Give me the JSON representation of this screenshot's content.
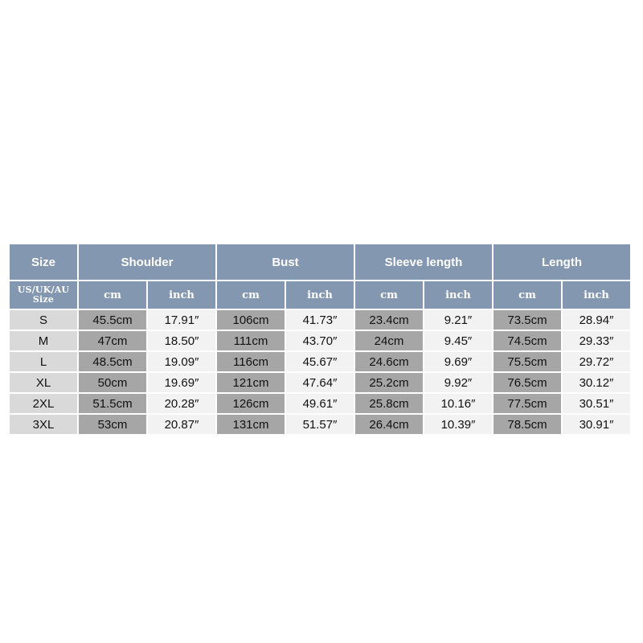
{
  "header": {
    "groups": [
      "Size",
      "Shoulder",
      "Bust",
      "Sleeve length",
      "Length"
    ],
    "size_caption_line1": "US/UK/AU",
    "size_caption_line2": "Size",
    "units": [
      "cm",
      "inch",
      "cm",
      "inch",
      "cm",
      "inch",
      "cm",
      "inch"
    ]
  },
  "rows": [
    {
      "size": "S",
      "values": [
        "45.5cm",
        "17.91″",
        "106cm",
        "41.73″",
        "23.4cm",
        "9.21″",
        "73.5cm",
        "28.94″"
      ]
    },
    {
      "size": "M",
      "values": [
        "47cm",
        "18.50″",
        "111cm",
        "43.70″",
        "24cm",
        "9.45″",
        "74.5cm",
        "29.33″"
      ]
    },
    {
      "size": "L",
      "values": [
        "48.5cm",
        "19.09″",
        "116cm",
        "45.67″",
        "24.6cm",
        "9.69″",
        "75.5cm",
        "29.72″"
      ]
    },
    {
      "size": "XL",
      "values": [
        "50cm",
        "19.69″",
        "121cm",
        "47.64″",
        "25.2cm",
        "9.92″",
        "76.5cm",
        "30.12″"
      ]
    },
    {
      "size": "2XL",
      "values": [
        "51.5cm",
        "20.28″",
        "126cm",
        "49.61″",
        "25.8cm",
        "10.16″",
        "77.5cm",
        "30.51″"
      ]
    },
    {
      "size": "3XL",
      "values": [
        "53cm",
        "20.87″",
        "131cm",
        "51.57″",
        "26.4cm",
        "10.39″",
        "78.5cm",
        "30.91″"
      ]
    }
  ],
  "colors": {
    "header_bg": "#8497b0",
    "header_text": "#ffffff",
    "size_cell": "#d9d9d9",
    "cm_cell": "#a6a6a6",
    "inch_cell": "#f2f2f2"
  }
}
